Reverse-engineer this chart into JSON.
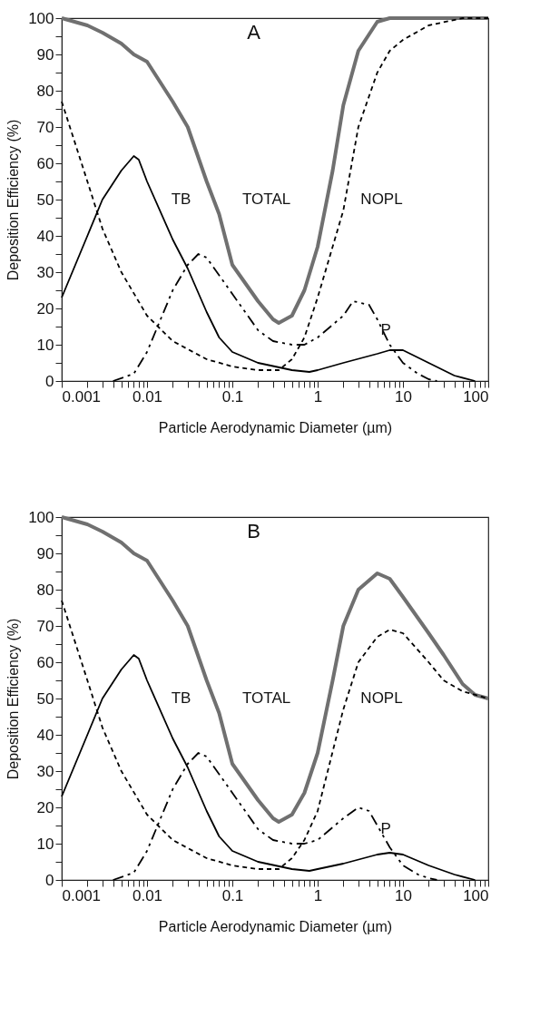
{
  "chart_data": [
    {
      "type": "line",
      "title": "A",
      "xlabel": "Particle Aerodynamic Diameter  (µm)",
      "ylabel": "Deposition Efficiency  (%)",
      "log": "x",
      "xlim": [
        0.001,
        100
      ],
      "ylim": [
        0,
        100
      ],
      "xticks": [
        0.001,
        {
          "value": 0.002,
          "label": null
        },
        {
          "value": 0.003,
          "label": null
        },
        {
          "value": 0.004,
          "label": null
        },
        {
          "value": 0.005,
          "label": null
        },
        {
          "value": 0.006,
          "label": null
        },
        {
          "value": 0.007,
          "label": null
        },
        {
          "value": 0.008,
          "label": null
        },
        {
          "value": 0.009,
          "label": null
        },
        0.01,
        {
          "value": 0.02,
          "label": null
        },
        {
          "value": 0.03,
          "label": null
        },
        {
          "value": 0.04,
          "label": null
        },
        {
          "value": 0.05,
          "label": null
        },
        {
          "value": 0.06,
          "label": null
        },
        {
          "value": 0.07,
          "label": null
        },
        {
          "value": 0.08,
          "label": null
        },
        {
          "value": 0.09,
          "label": null
        },
        0.1,
        {
          "value": 0.2,
          "label": null
        },
        {
          "value": 0.3,
          "label": null
        },
        {
          "value": 0.4,
          "label": null
        },
        {
          "value": 0.5,
          "label": null
        },
        {
          "value": 0.6,
          "label": null
        },
        {
          "value": 0.7,
          "label": null
        },
        {
          "value": 0.8,
          "label": null
        },
        {
          "value": 0.9,
          "label": null
        },
        1,
        {
          "value": 2,
          "label": null
        },
        {
          "value": 3,
          "label": null
        },
        {
          "value": 4,
          "label": null
        },
        {
          "value": 5,
          "label": null
        },
        {
          "value": 6,
          "label": null
        },
        {
          "value": 7,
          "label": null
        },
        {
          "value": 8,
          "label": null
        },
        {
          "value": 9,
          "label": null
        },
        10,
        {
          "value": 20,
          "label": null
        },
        {
          "value": 30,
          "label": null
        },
        {
          "value": 40,
          "label": null
        },
        {
          "value": 50,
          "label": null
        },
        {
          "value": 60,
          "label": null
        },
        {
          "value": 70,
          "label": null
        },
        {
          "value": 80,
          "label": null
        },
        {
          "value": 90,
          "label": null
        },
        100
      ],
      "yticks": [
        0,
        {
          "value": 5,
          "label": null
        },
        10,
        {
          "value": 15,
          "label": null
        },
        20,
        {
          "value": 25,
          "label": null
        },
        30,
        {
          "value": 35,
          "label": null
        },
        40,
        {
          "value": 45,
          "label": null
        },
        50,
        {
          "value": 55,
          "label": null
        },
        60,
        {
          "value": 65,
          "label": null
        },
        70,
        {
          "value": 75,
          "label": null
        },
        80,
        {
          "value": 85,
          "label": null
        },
        90,
        {
          "value": 95,
          "label": null
        },
        100
      ],
      "series": [
        {
          "color": "#707070",
          "line_style": "solid",
          "x": [
            0.001,
            0.002,
            0.003,
            0.005,
            0.007,
            0.01,
            0.02,
            0.03,
            0.05,
            0.07,
            0.1,
            0.2,
            0.3,
            0.35,
            0.5,
            0.7,
            1,
            1.5,
            2,
            3,
            5,
            7,
            10,
            20,
            50,
            100
          ],
          "values": [
            100,
            98,
            96,
            93,
            90,
            88,
            77,
            70,
            55,
            46,
            32,
            22,
            17,
            16,
            18,
            25,
            37,
            58,
            76,
            91,
            99,
            100,
            100,
            100,
            100,
            100
          ]
        },
        {
          "color": "#000000",
          "line_style": "solid",
          "x": [
            0.001,
            0.002,
            0.003,
            0.005,
            0.007,
            0.008,
            0.01,
            0.02,
            0.03,
            0.05,
            0.07,
            0.1,
            0.2,
            0.5,
            0.8,
            1,
            2,
            5,
            7,
            10,
            20,
            40,
            70
          ],
          "values": [
            23,
            40,
            50,
            58,
            62,
            61,
            55,
            39,
            31,
            19,
            12,
            8,
            5,
            3,
            2.5,
            3,
            5,
            7.5,
            8.5,
            8.5,
            5,
            1.5,
            0
          ]
        },
        {
          "color": "#000000",
          "line_style": "dotted",
          "x": [
            0.001,
            0.002,
            0.003,
            0.005,
            0.01,
            0.02,
            0.05,
            0.1,
            0.2,
            0.35,
            0.5,
            0.7,
            1,
            2,
            3,
            5,
            7,
            10,
            20,
            50,
            100
          ],
          "values": [
            77,
            55,
            42,
            30,
            18,
            11,
            6,
            4,
            3,
            3,
            6,
            12,
            23,
            47,
            70,
            85,
            91,
            94,
            98,
            100,
            100
          ]
        },
        {
          "color": "#000000",
          "line_style": "dashed",
          "x": [
            0.004,
            0.007,
            0.01,
            0.02,
            0.03,
            0.04,
            0.05,
            0.1,
            0.2,
            0.3,
            0.5,
            0.7,
            1,
            2,
            2.6,
            4,
            5,
            7,
            10,
            15,
            20,
            25
          ],
          "values": [
            0,
            2,
            8,
            25,
            32,
            35,
            34,
            24,
            14,
            11,
            10,
            10,
            12,
            18,
            22,
            21,
            17,
            10,
            5,
            2,
            0.5,
            0
          ]
        }
      ],
      "annotations": [
        "TB",
        "TOTAL",
        "NOPL",
        "P"
      ]
    },
    {
      "type": "line",
      "title": "B",
      "xlabel": "Particle Aerodynamic Diameter  (µm)",
      "ylabel": "Deposition Efficiency  (%)",
      "log": "x",
      "xlim": [
        0.001,
        100
      ],
      "ylim": [
        0,
        100
      ],
      "xticks": [
        0.001,
        {
          "value": 0.002,
          "label": null
        },
        {
          "value": 0.003,
          "label": null
        },
        {
          "value": 0.004,
          "label": null
        },
        {
          "value": 0.005,
          "label": null
        },
        {
          "value": 0.006,
          "label": null
        },
        {
          "value": 0.007,
          "label": null
        },
        {
          "value": 0.008,
          "label": null
        },
        {
          "value": 0.009,
          "label": null
        },
        0.01,
        {
          "value": 0.02,
          "label": null
        },
        {
          "value": 0.03,
          "label": null
        },
        {
          "value": 0.04,
          "label": null
        },
        {
          "value": 0.05,
          "label": null
        },
        {
          "value": 0.06,
          "label": null
        },
        {
          "value": 0.07,
          "label": null
        },
        {
          "value": 0.08,
          "label": null
        },
        {
          "value": 0.09,
          "label": null
        },
        0.1,
        {
          "value": 0.2,
          "label": null
        },
        {
          "value": 0.3,
          "label": null
        },
        {
          "value": 0.4,
          "label": null
        },
        {
          "value": 0.5,
          "label": null
        },
        {
          "value": 0.6,
          "label": null
        },
        {
          "value": 0.7,
          "label": null
        },
        {
          "value": 0.8,
          "label": null
        },
        {
          "value": 0.9,
          "label": null
        },
        1,
        {
          "value": 2,
          "label": null
        },
        {
          "value": 3,
          "label": null
        },
        {
          "value": 4,
          "label": null
        },
        {
          "value": 5,
          "label": null
        },
        {
          "value": 6,
          "label": null
        },
        {
          "value": 7,
          "label": null
        },
        {
          "value": 8,
          "label": null
        },
        {
          "value": 9,
          "label": null
        },
        10,
        {
          "value": 20,
          "label": null
        },
        {
          "value": 30,
          "label": null
        },
        {
          "value": 40,
          "label": null
        },
        {
          "value": 50,
          "label": null
        },
        {
          "value": 60,
          "label": null
        },
        {
          "value": 70,
          "label": null
        },
        {
          "value": 80,
          "label": null
        },
        {
          "value": 90,
          "label": null
        },
        100
      ],
      "yticks": [
        0,
        {
          "value": 5,
          "label": null
        },
        10,
        {
          "value": 15,
          "label": null
        },
        20,
        {
          "value": 25,
          "label": null
        },
        30,
        {
          "value": 35,
          "label": null
        },
        40,
        {
          "value": 45,
          "label": null
        },
        50,
        {
          "value": 55,
          "label": null
        },
        60,
        {
          "value": 65,
          "label": null
        },
        70,
        {
          "value": 75,
          "label": null
        },
        80,
        {
          "value": 85,
          "label": null
        },
        90,
        {
          "value": 95,
          "label": null
        },
        100
      ],
      "series": [
        {
          "color": "#707070",
          "line_style": "solid",
          "x": [
            0.001,
            0.002,
            0.003,
            0.005,
            0.007,
            0.01,
            0.02,
            0.03,
            0.05,
            0.07,
            0.1,
            0.2,
            0.3,
            0.35,
            0.5,
            0.7,
            1,
            1.5,
            2,
            3,
            5,
            7,
            10,
            20,
            30,
            50,
            70,
            100
          ],
          "values": [
            100,
            98,
            96,
            93,
            90,
            88,
            77,
            70,
            55,
            46,
            32,
            22,
            17,
            16,
            18,
            24,
            35,
            55,
            70,
            80,
            84.5,
            83,
            78,
            68,
            62,
            54,
            51,
            50
          ]
        },
        {
          "color": "#000000",
          "line_style": "solid",
          "x": [
            0.001,
            0.002,
            0.003,
            0.005,
            0.007,
            0.008,
            0.01,
            0.02,
            0.03,
            0.05,
            0.07,
            0.1,
            0.2,
            0.5,
            0.8,
            1,
            2,
            5,
            7,
            10,
            20,
            40,
            70
          ],
          "values": [
            23,
            40,
            50,
            58,
            62,
            61,
            55,
            39,
            31,
            19,
            12,
            8,
            5,
            3,
            2.5,
            3,
            4.5,
            7,
            7.5,
            7,
            4,
            1.5,
            0
          ]
        },
        {
          "color": "#000000",
          "line_style": "dotted",
          "x": [
            0.001,
            0.002,
            0.003,
            0.005,
            0.01,
            0.02,
            0.05,
            0.1,
            0.2,
            0.35,
            0.5,
            0.7,
            1,
            2,
            3,
            5,
            7,
            10,
            20,
            30,
            50,
            100
          ],
          "values": [
            77,
            55,
            42,
            30,
            18,
            11,
            6,
            4,
            3,
            3,
            6,
            11,
            19,
            47,
            60,
            67,
            69,
            68,
            60,
            55,
            52,
            50
          ]
        },
        {
          "color": "#000000",
          "line_style": "dashed",
          "x": [
            0.004,
            0.007,
            0.01,
            0.02,
            0.03,
            0.04,
            0.05,
            0.1,
            0.2,
            0.3,
            0.5,
            0.7,
            1,
            2,
            3,
            4,
            5,
            7,
            10,
            15,
            20,
            25
          ],
          "values": [
            0,
            2,
            8,
            25,
            32,
            35,
            34,
            24,
            14,
            11,
            10,
            10,
            11,
            17,
            20,
            19,
            15,
            9,
            4,
            1.5,
            0.5,
            0
          ]
        }
      ],
      "annotations": [
        "TB",
        "TOTAL",
        "NOPL",
        "P"
      ]
    }
  ]
}
